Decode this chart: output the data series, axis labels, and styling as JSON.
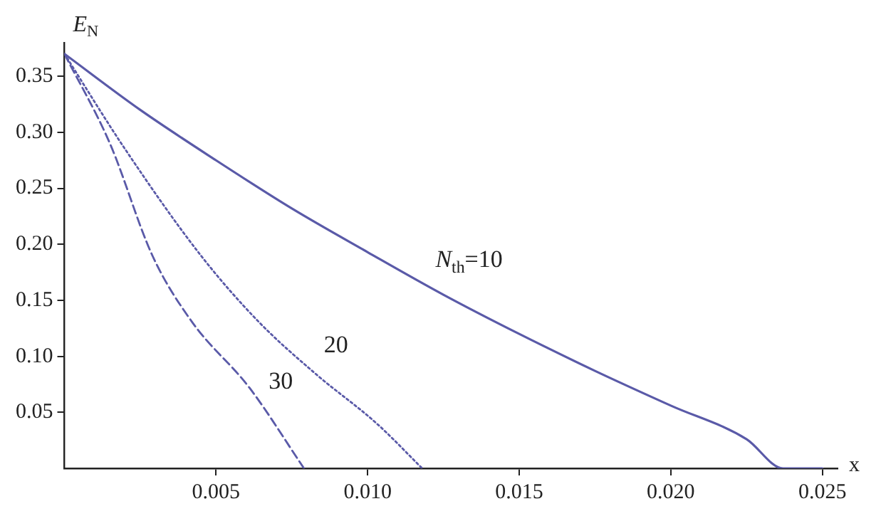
{
  "chart_data": {
    "type": "line",
    "xlabel": "x",
    "ylabel": "E$_{N}$",
    "xlim": [
      0,
      0.0255
    ],
    "ylim": [
      0,
      0.38
    ],
    "xticks": [
      0.005,
      {
        "value": 0.01,
        "label": "0.010"
      },
      0.015,
      {
        "value": 0.02,
        "label": "0.020"
      },
      0.025
    ],
    "yticks": [
      0.05,
      {
        "value": 0.1,
        "label": "0.10"
      },
      0.15,
      {
        "value": 0.2,
        "label": "0.20"
      },
      0.25,
      {
        "value": 0.3,
        "label": "0.30"
      },
      0.35
    ],
    "grid": false,
    "legend": false,
    "marker": "none",
    "series": [
      {
        "name": "N$_{th}$=10",
        "color": "#5a5aa8",
        "line_style": "solid",
        "x": [
          0,
          0.0025,
          0.005,
          0.0075,
          0.01,
          0.0125,
          0.015,
          0.0175,
          0.02,
          0.0225,
          0.0237,
          0.025
        ],
        "values": [
          0.37,
          0.32,
          0.275,
          0.232,
          0.193,
          0.155,
          0.12,
          0.087,
          0.056,
          0.026,
          0,
          0
        ]
      },
      {
        "name": "20",
        "color": "#5a5aa8",
        "line_style": "dotted",
        "x": [
          0,
          0.002,
          0.0045,
          0.0064,
          0.0083,
          0.0103,
          0.0118
        ],
        "values": [
          0.37,
          0.285,
          0.19,
          0.131,
          0.084,
          0.04,
          0
        ]
      },
      {
        "name": "30",
        "color": "#5a5aa8",
        "line_style": "dashed",
        "x": [
          0,
          0.0015,
          0.0029,
          0.0042,
          0.0061,
          0.0079
        ],
        "values": [
          0.37,
          0.29,
          0.19,
          0.131,
          0.072,
          0
        ]
      }
    ]
  }
}
